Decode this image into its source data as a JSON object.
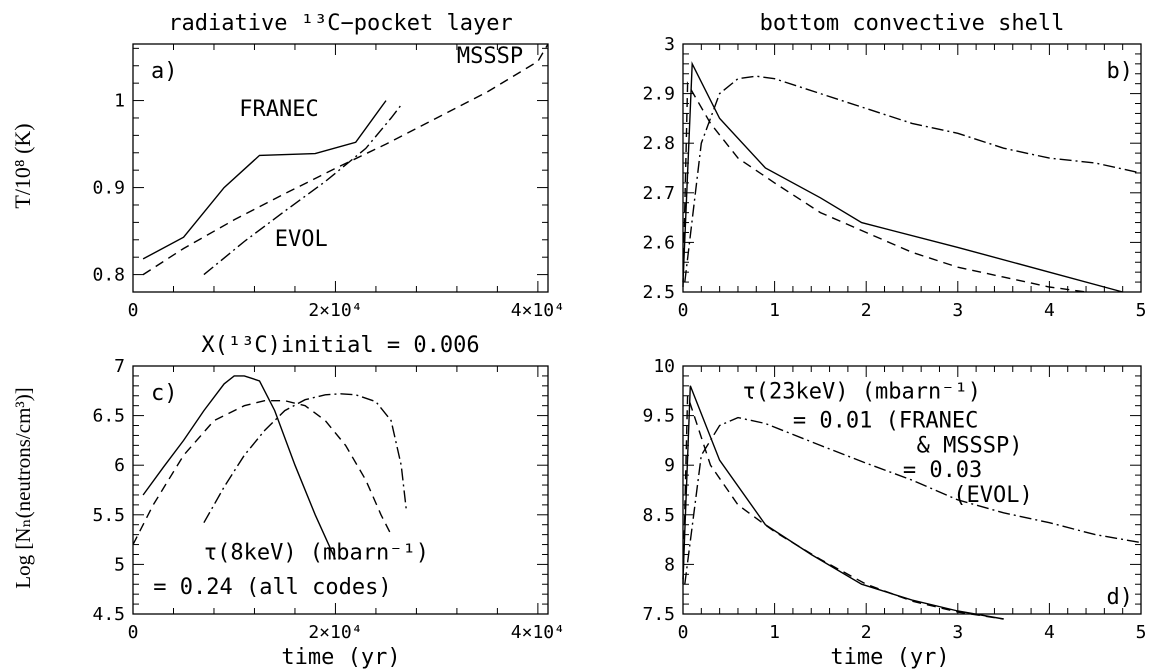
{
  "figure": {
    "ylabel_top": "T/10⁸ (K)",
    "ylabel_bottom": "Log [Nₙ(neutrons/cm³)]",
    "xlabel": "time (yr)"
  },
  "chart_data": [
    {
      "id": "a",
      "type": "line",
      "title": "radiative ¹³C−pocket layer",
      "panel_label": "a)",
      "xlim": [
        0,
        41000
      ],
      "ylim": [
        0.78,
        1.065
      ],
      "xticks": [
        {
          "v": 0,
          "label": "0"
        },
        {
          "v": 20000,
          "label": "2×10⁴"
        },
        {
          "v": 40000,
          "label": "4×10⁴"
        }
      ],
      "yticks": [
        {
          "v": 0.8,
          "label": "0.8"
        },
        {
          "v": 0.9,
          "label": "0.9"
        },
        {
          "v": 1.0,
          "label": "1"
        }
      ],
      "annotations": [
        {
          "text": "FRANEC",
          "x": 10500,
          "y": 0.982
        },
        {
          "text": "MSSSP",
          "x": 32000,
          "y": 1.043
        },
        {
          "text": "EVOL",
          "x": 14000,
          "y": 0.833
        }
      ],
      "series": [
        {
          "style": "solid",
          "x": [
            1000,
            5000,
            9000,
            12500,
            18000,
            22000,
            25000
          ],
          "y": [
            0.818,
            0.843,
            0.9,
            0.937,
            0.939,
            0.952,
            1.0
          ]
        },
        {
          "style": "dashed",
          "x": [
            1000,
            5000,
            10000,
            15000,
            20000,
            25000,
            30000,
            35000,
            40000,
            41000
          ],
          "y": [
            0.8,
            0.83,
            0.863,
            0.893,
            0.922,
            0.95,
            0.98,
            1.01,
            1.045,
            1.065
          ]
        },
        {
          "style": "dashdot",
          "x": [
            7000,
            11000,
            15000,
            19000,
            23000,
            25500,
            26500
          ],
          "y": [
            0.8,
            0.838,
            0.873,
            0.907,
            0.945,
            0.98,
            0.995
          ]
        }
      ]
    },
    {
      "id": "b",
      "type": "line",
      "title": "bottom convective shell",
      "panel_label": "b)",
      "xlim": [
        0,
        5
      ],
      "ylim": [
        2.5,
        3.0
      ],
      "xticks": [
        {
          "v": 0,
          "label": "0"
        },
        {
          "v": 1,
          "label": "1"
        },
        {
          "v": 2,
          "label": "2"
        },
        {
          "v": 3,
          "label": "3"
        },
        {
          "v": 4,
          "label": "4"
        },
        {
          "v": 5,
          "label": "5"
        }
      ],
      "yticks": [
        {
          "v": 2.5,
          "label": "2.5"
        },
        {
          "v": 2.6,
          "label": "2.6"
        },
        {
          "v": 2.7,
          "label": "2.7"
        },
        {
          "v": 2.8,
          "label": "2.8"
        },
        {
          "v": 2.9,
          "label": "2.9"
        },
        {
          "v": 3.0,
          "label": "3"
        }
      ],
      "annotations": [],
      "series": [
        {
          "style": "solid",
          "x": [
            0.0,
            0.1,
            0.4,
            0.9,
            1.5,
            1.95,
            3.0,
            4.0,
            4.8
          ],
          "y": [
            2.52,
            2.96,
            2.85,
            2.75,
            2.69,
            2.64,
            2.59,
            2.54,
            2.5
          ]
        },
        {
          "style": "dashed",
          "x": [
            0.0,
            0.05,
            0.3,
            0.6,
            1.0,
            1.5,
            2.0,
            2.5,
            3.0,
            3.5,
            4.0,
            4.4
          ],
          "y": [
            2.51,
            2.92,
            2.84,
            2.77,
            2.72,
            2.66,
            2.62,
            2.58,
            2.55,
            2.53,
            2.51,
            2.5
          ]
        },
        {
          "style": "dashdot",
          "x": [
            0.02,
            0.2,
            0.4,
            0.6,
            0.8,
            1.0,
            1.5,
            2.0,
            2.5,
            3.0,
            3.5,
            4.0,
            4.5,
            5.0
          ],
          "y": [
            2.52,
            2.8,
            2.9,
            2.93,
            2.935,
            2.93,
            2.9,
            2.87,
            2.84,
            2.82,
            2.79,
            2.77,
            2.76,
            2.74
          ]
        }
      ]
    },
    {
      "id": "c",
      "type": "line",
      "title": "X(¹³C)initial = 0.006",
      "panel_label": "c)",
      "xlim": [
        0,
        41000
      ],
      "ylim": [
        4.5,
        7.0
      ],
      "xticks": [
        {
          "v": 0,
          "label": "0"
        },
        {
          "v": 20000,
          "label": "2×10⁴"
        },
        {
          "v": 40000,
          "label": "4×10⁴"
        }
      ],
      "yticks": [
        {
          "v": 4.5,
          "label": "4.5"
        },
        {
          "v": 5.0,
          "label": "5"
        },
        {
          "v": 5.5,
          "label": "5.5"
        },
        {
          "v": 6.0,
          "label": "6"
        },
        {
          "v": 6.5,
          "label": "6.5"
        },
        {
          "v": 7.0,
          "label": "7"
        }
      ],
      "annotations": [
        {
          "text": "τ(8keV) (mbarn⁻¹)",
          "x": 7000,
          "y": 5.05
        },
        {
          "text": "= 0.24 (all codes)",
          "x": 2000,
          "y": 4.7
        }
      ],
      "series": [
        {
          "style": "solid",
          "x": [
            1000,
            3000,
            5000,
            7000,
            9000,
            10000,
            11000,
            12500,
            14000,
            16000,
            18000,
            20000
          ],
          "y": [
            5.7,
            5.98,
            6.25,
            6.55,
            6.82,
            6.9,
            6.9,
            6.85,
            6.55,
            6.0,
            5.5,
            5.05
          ]
        },
        {
          "style": "dashed",
          "x": [
            0,
            2000,
            5000,
            8000,
            11000,
            13000,
            15000,
            17000,
            19000,
            21000,
            23000,
            24500,
            25500
          ],
          "y": [
            5.2,
            5.6,
            6.1,
            6.45,
            6.6,
            6.65,
            6.65,
            6.6,
            6.45,
            6.2,
            5.85,
            5.5,
            5.3
          ]
        },
        {
          "style": "dashdot",
          "x": [
            7000,
            9000,
            11000,
            13000,
            15000,
            17000,
            19000,
            20500,
            22000,
            24000,
            25500,
            26500,
            27000
          ],
          "y": [
            5.42,
            5.78,
            6.1,
            6.35,
            6.55,
            6.66,
            6.71,
            6.72,
            6.71,
            6.64,
            6.45,
            6.0,
            5.55
          ]
        }
      ]
    },
    {
      "id": "d",
      "type": "line",
      "title": "",
      "panel_label": "d)",
      "xlim": [
        0,
        5
      ],
      "ylim": [
        7.5,
        10.0
      ],
      "xticks": [
        {
          "v": 0,
          "label": "0"
        },
        {
          "v": 1,
          "label": "1"
        },
        {
          "v": 2,
          "label": "2"
        },
        {
          "v": 3,
          "label": "3"
        },
        {
          "v": 4,
          "label": "4"
        },
        {
          "v": 5,
          "label": "5"
        }
      ],
      "yticks": [
        {
          "v": 7.5,
          "label": "7.5"
        },
        {
          "v": 8.0,
          "label": "8"
        },
        {
          "v": 8.5,
          "label": "8.5"
        },
        {
          "v": 9.0,
          "label": "9"
        },
        {
          "v": 9.5,
          "label": "9.5"
        },
        {
          "v": 10.0,
          "label": "10"
        }
      ],
      "annotations": [
        {
          "text": "τ(23keV) (mbarn⁻¹)",
          "x": 0.65,
          "y": 9.67
        },
        {
          "text": "= 0.01 (FRANEC",
          "x": 1.2,
          "y": 9.38
        },
        {
          "text": "& MSSSP)",
          "x": 2.55,
          "y": 9.13
        },
        {
          "text": "= 0.03",
          "x": 2.4,
          "y": 8.88
        },
        {
          "text": "(EVOL)",
          "x": 2.95,
          "y": 8.63
        }
      ],
      "series": [
        {
          "style": "solid",
          "x": [
            0.0,
            0.08,
            0.4,
            0.9,
            1.4,
            1.95,
            2.5,
            3.0,
            3.5
          ],
          "y": [
            7.85,
            9.8,
            9.05,
            8.4,
            8.1,
            7.8,
            7.64,
            7.53,
            7.45
          ]
        },
        {
          "style": "dashed",
          "x": [
            0.0,
            0.05,
            0.3,
            0.6,
            1.0,
            1.5,
            2.0,
            2.5,
            3.0,
            3.5
          ],
          "y": [
            7.8,
            9.7,
            9.0,
            8.6,
            8.33,
            8.05,
            7.8,
            7.63,
            7.52,
            7.45
          ]
        },
        {
          "style": "dashdot",
          "x": [
            0.02,
            0.2,
            0.4,
            0.6,
            0.9,
            1.5,
            2.0,
            2.5,
            3.0,
            3.5,
            4.0,
            4.5,
            5.0
          ],
          "y": [
            7.8,
            9.1,
            9.4,
            9.48,
            9.42,
            9.2,
            9.02,
            8.85,
            8.65,
            8.52,
            8.42,
            8.3,
            8.22
          ]
        }
      ]
    }
  ]
}
